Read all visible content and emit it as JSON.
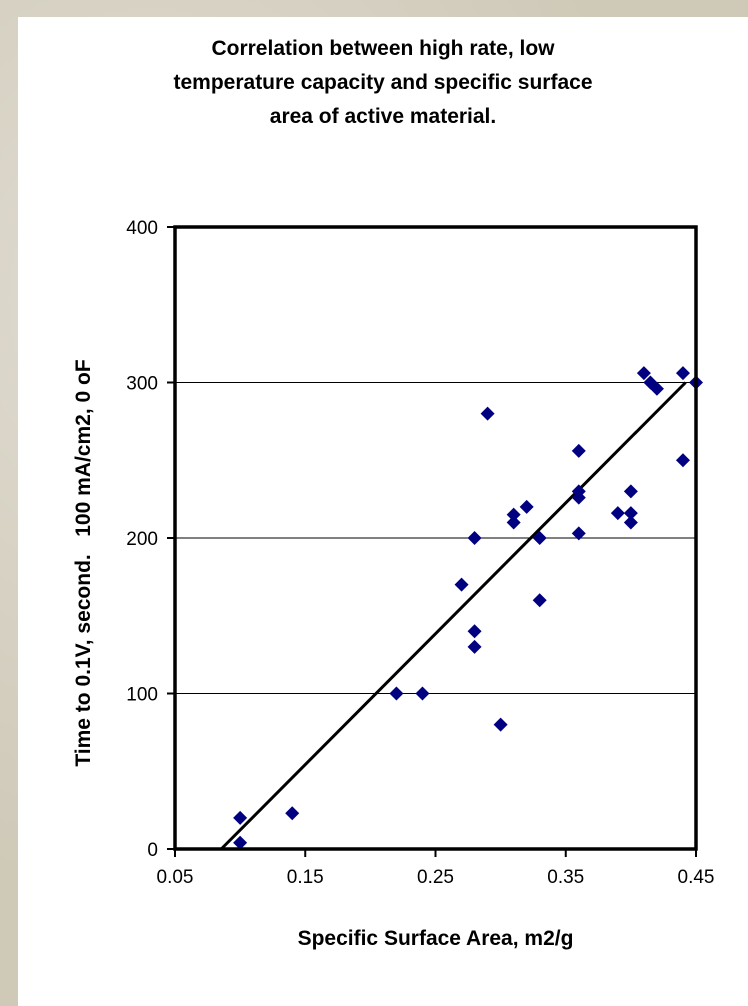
{
  "chart_data": {
    "type": "scatter",
    "title_lines": [
      "Correlation between high rate, low",
      "temperature capacity and specific surface",
      "area of active material."
    ],
    "xlabel": "Specific Surface Area, m2/g",
    "ylabel": "Time to 0.1V, second.   100 mA/cm2, 0 oF",
    "xlim": [
      0.05,
      0.45
    ],
    "ylim": [
      0,
      400
    ],
    "x_ticks": [
      0.05,
      0.15,
      0.25,
      0.35,
      0.45
    ],
    "y_ticks": [
      0,
      100,
      200,
      300,
      400
    ],
    "x_tick_labels": [
      "0.05",
      "0.15",
      "0.25",
      "0.35",
      "0.45"
    ],
    "y_tick_labels": [
      "0",
      "100",
      "200",
      "300",
      "400"
    ],
    "grid": "horizontal major",
    "legend": "none",
    "series": [
      {
        "color": "#000080",
        "marker": "diamond",
        "points": [
          [
            0.1,
            20
          ],
          [
            0.1,
            4
          ],
          [
            0.14,
            23
          ],
          [
            0.22,
            100
          ],
          [
            0.24,
            100
          ],
          [
            0.27,
            170
          ],
          [
            0.28,
            200
          ],
          [
            0.28,
            140
          ],
          [
            0.28,
            130
          ],
          [
            0.29,
            280
          ],
          [
            0.3,
            80
          ],
          [
            0.31,
            215
          ],
          [
            0.31,
            210
          ],
          [
            0.32,
            220
          ],
          [
            0.33,
            200
          ],
          [
            0.33,
            160
          ],
          [
            0.36,
            256
          ],
          [
            0.36,
            230
          ],
          [
            0.36,
            226
          ],
          [
            0.36,
            203
          ],
          [
            0.39,
            216
          ],
          [
            0.4,
            230
          ],
          [
            0.4,
            216
          ],
          [
            0.4,
            210
          ],
          [
            0.41,
            306
          ],
          [
            0.415,
            300
          ],
          [
            0.42,
            296
          ],
          [
            0.44,
            306
          ],
          [
            0.44,
            250
          ],
          [
            0.45,
            300
          ]
        ]
      }
    ],
    "trendline": {
      "color": "#000000",
      "points": [
        [
          0.0855,
          0
        ],
        [
          0.442,
          300
        ]
      ]
    }
  }
}
